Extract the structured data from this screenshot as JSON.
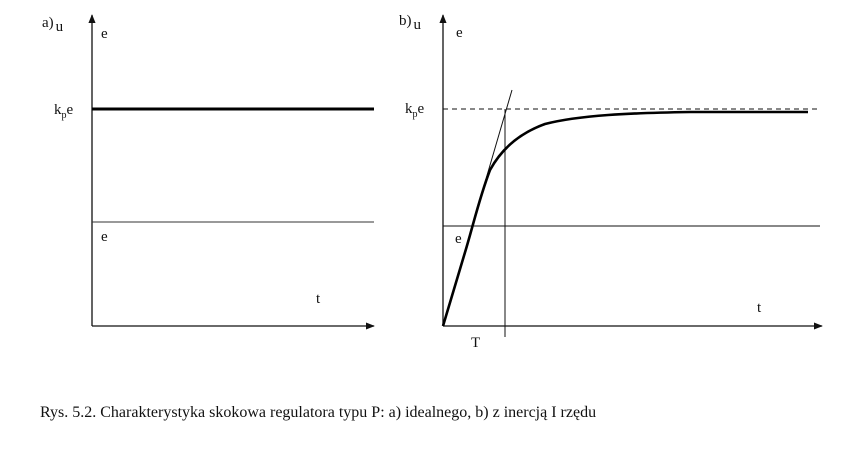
{
  "panel_a": {
    "label_prefix": "a)",
    "label_var": "u",
    "axis_y_label": "e",
    "gain_label_main": "k",
    "gain_label_sub": "p",
    "gain_label_end": "e",
    "input_label": "e",
    "axis_x_label": "t"
  },
  "panel_b": {
    "label_prefix": "b)",
    "label_var": "u",
    "axis_y_label": "e",
    "gain_label_main": "k",
    "gain_label_sub": "p",
    "gain_label_end": "e",
    "input_label": "e",
    "axis_x_label": "t",
    "time_constant_label": "T"
  },
  "caption": "Rys. 5.2. Charakterystyka skokowa regulatora typu P: a) idealnego, b) z inercją I rzędu"
}
